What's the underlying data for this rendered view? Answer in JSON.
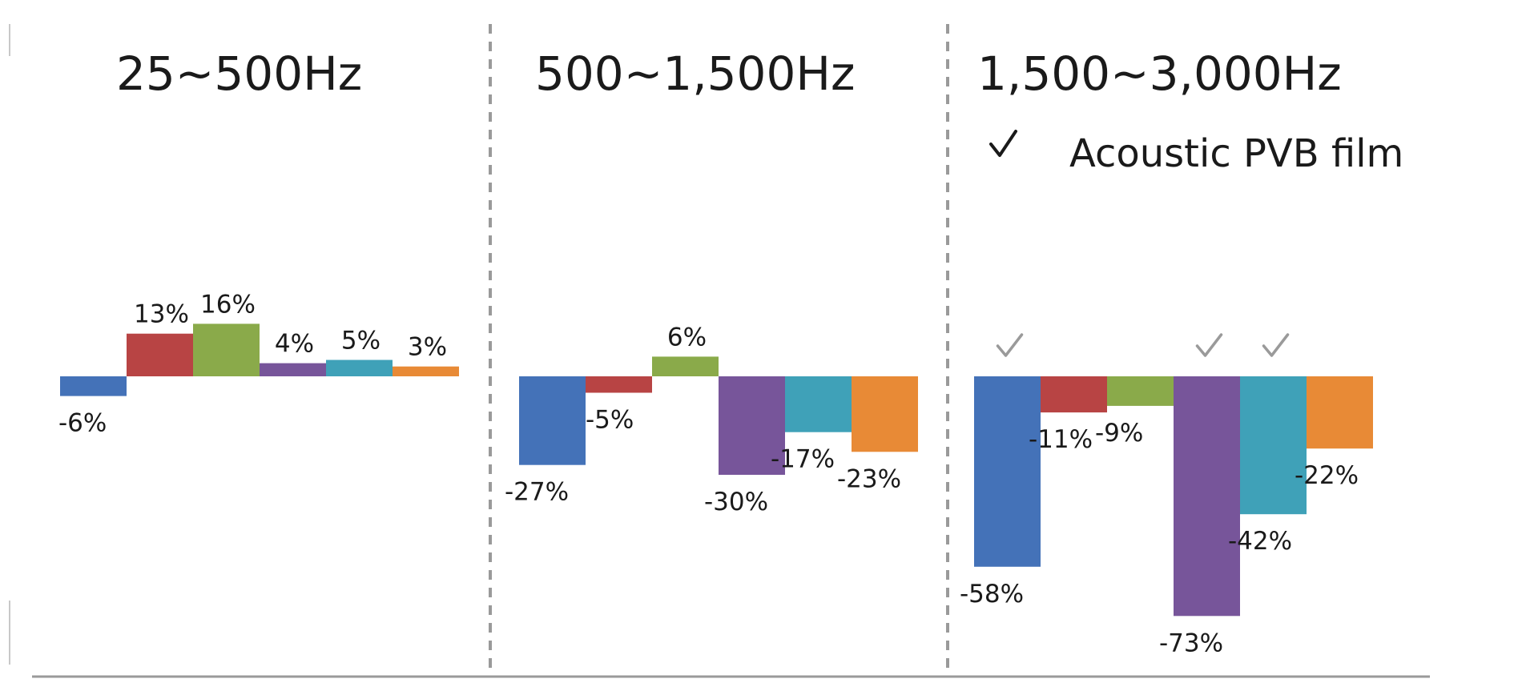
{
  "chart_data": {
    "type": "bar",
    "panels": [
      {
        "title": "25~500Hz",
        "values": [
          -6,
          13,
          16,
          4,
          5,
          3
        ],
        "labels": [
          "-6%",
          "13%",
          "16%",
          "4%",
          "5%",
          "3%"
        ],
        "checked": [
          false,
          false,
          false,
          false,
          false,
          false
        ]
      },
      {
        "title": "500~1,500Hz",
        "values": [
          -27,
          -5,
          6,
          -30,
          -17,
          -23
        ],
        "labels": [
          "-27%",
          "-5%",
          "6%",
          "-30%",
          "-17%",
          "-23%"
        ],
        "checked": [
          false,
          false,
          false,
          false,
          false,
          false
        ]
      },
      {
        "title": "1,500~3,000Hz",
        "values": [
          -58,
          -11,
          -9,
          -73,
          -42,
          -22
        ],
        "labels": [
          "-58%",
          "-11%",
          "-9%",
          "-73%",
          "-42%",
          "-22%"
        ],
        "checked": [
          true,
          false,
          false,
          true,
          true,
          false
        ]
      }
    ],
    "series_colors": [
      "#4472b8",
      "#b84444",
      "#8aaa4a",
      "#77559a",
      "#3fa1b8",
      "#e88a36"
    ],
    "legend": {
      "symbol": "✓",
      "label": "Acoustic PVB film",
      "position": "top-right"
    },
    "grid": false
  }
}
